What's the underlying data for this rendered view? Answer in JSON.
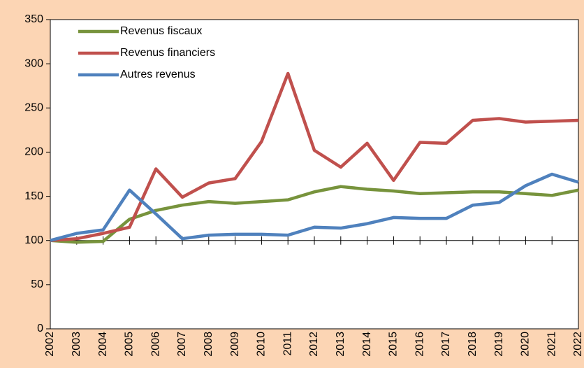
{
  "chart_data": {
    "type": "line",
    "categories": [
      "2002",
      "2003",
      "2004",
      "2005",
      "2006",
      "2007",
      "2008",
      "2009",
      "2010",
      "2011",
      "2012",
      "2013",
      "2014",
      "2015",
      "2016",
      "2017",
      "2018",
      "2019",
      "2020",
      "2021",
      "2022"
    ],
    "series": [
      {
        "name": "Revenus fiscaux",
        "color": "#77933c",
        "values": [
          100,
          98,
          99,
          124,
          134,
          140,
          144,
          142,
          144,
          146,
          155,
          161,
          158,
          156,
          153,
          154,
          155,
          155,
          153,
          151,
          157
        ]
      },
      {
        "name": "Revenus financiers",
        "color": "#c0504d",
        "values": [
          100,
          102,
          108,
          115,
          181,
          149,
          165,
          170,
          212,
          289,
          202,
          183,
          210,
          168,
          211,
          210,
          236,
          238,
          234,
          235,
          236
        ]
      },
      {
        "name": "Autres revenus",
        "color": "#4f81bd",
        "values": [
          100,
          108,
          112,
          157,
          130,
          102,
          106,
          107,
          107,
          106,
          115,
          114,
          119,
          126,
          125,
          125,
          140,
          143,
          162,
          175,
          166
        ]
      }
    ],
    "ylim": [
      0,
      350
    ],
    "yticks": [
      0,
      50,
      100,
      150,
      200,
      250,
      300,
      350
    ],
    "x_axis_crossing": 100,
    "grid": false,
    "legend": "top-left"
  }
}
